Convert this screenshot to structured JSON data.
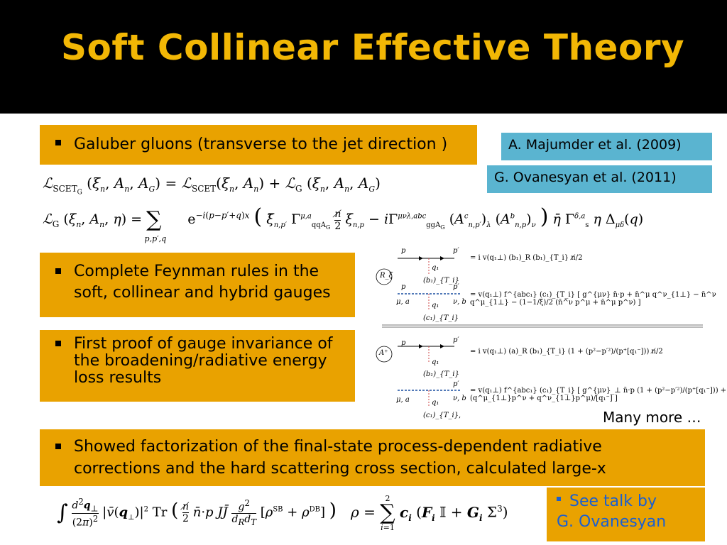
{
  "slide": {
    "title": "Soft Collinear Effective Theory"
  },
  "bullets": {
    "glauber": "Galuber gluons (transverse to the jet direction )",
    "feynman": "Complete Feynman rules in the soft, collinear and hybrid gauges",
    "gauge": "First proof of gauge invariance of the broadening/radiative energy loss results",
    "factorization": "Showed factorization of the final-state process-dependent radiative corrections and the hard scattering cross section, calculated large-x"
  },
  "references": {
    "majumder": "A. Majumder et al.  (2009)",
    "ovanesyan": "G. Ovanesyan et al.  (2011)"
  },
  "equations": {
    "lagrangian_total": "ℒ_SCET_G (ξ_n, A_n, A_G) = ℒ_SCET(ξ_n, A_n) + ℒ_G (ξ_n, A_n, A_G)",
    "lagrangian_glauber": "ℒ_G (ξ_n, A_n, η) = Σ_{p,p′,q} e^{−i(p−p′+q)x} ( ξ̄_{n,p′} Γ^{μ,a}_{qqA_G} (n̸/2) ξ_{n,p} − i Γ^{μνλ,abc}_{ggA_G} (A^c_{n,p′})_λ (A^b_{n,p})_ν ) η̄ Γ^{δ,a}_s η Δ_{μδ}(q)",
    "bottom_integral": "∫ d²q_⊥/(2π)² |v̄(q_⊥)|² Tr ( (n̸/2) n̄·p J J̄ g²/(d_R d_T) [ρ^SB + ρ^DB] )",
    "rho": "ρ = Σ_{i=1}^{2} c_i (F_i 𝕀 + G_i Σ³)"
  },
  "feynman_rules": {
    "gauge_1": "R_ξ",
    "gauge_2": "A⁺",
    "p": "p",
    "p_prime": "p′",
    "q1": "q₁",
    "b1": "(b₁)_{T_i}",
    "c1": "(c₁)_{T_i}",
    "mu_a": "μ, a",
    "nu_b": "ν, b",
    "rule_1": "=  i v(q₁⊥) (b₁)_R (b₁)_{T_i} n̸/2",
    "rule_2": "=  v(q₁⊥) f^{abc₁} (c₁)_{T_i} [ g^{μν} n̄·p + n̄^μ q^ν_{1⊥} − n̄^ν q^μ_{1⊥} − (1−1/ξ)/2 (n̄^ν p^μ + n̄^μ p^ν) ]",
    "rule_3": "=  i v(q₁⊥) (a)_R (b₁)_{T_i} (1 + (p²−p′²)/(p⁺[q₁⁻])) n̸/2",
    "rule_4": "=  v(q₁⊥) f^{abc₁} (c₁)_{T_i} [ g^{μν}_⊥ n̄·p (1 + (p²−p′²)/(p⁺[q₁⁻])) + (q^μ_{1⊥}p^ν + q^ν_{1⊥}p^μ)/[q₁⁻] ]",
    "comma": ","
  },
  "many_more": "Many more …",
  "talk": {
    "line1": "See talk by",
    "line2": "G. Ovanesyan"
  },
  "colors": {
    "title": "#f2b705",
    "box": "#e9a200",
    "ref_majumder": "#5ab4d0",
    "ref_ovanesyan": "#5ab4d0",
    "link": "#1a5fd1"
  }
}
